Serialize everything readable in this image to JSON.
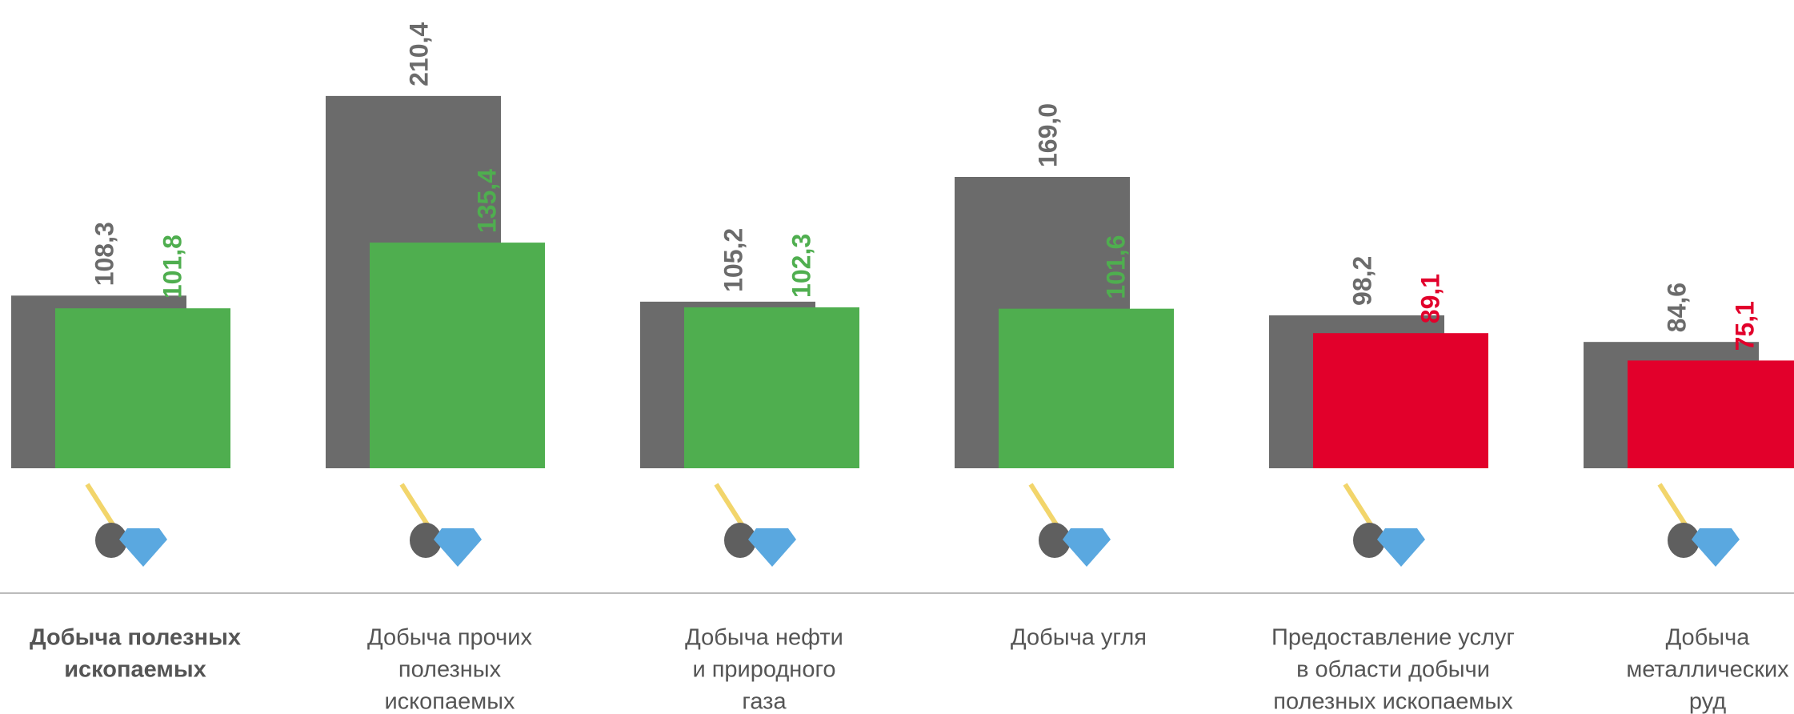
{
  "chart_data": {
    "type": "bar",
    "categories": [
      [
        "Добыча полезных",
        "ископаемых"
      ],
      [
        "Добыча прочих",
        "полезных",
        "ископаемых"
      ],
      [
        "Добыча нефти",
        "и природного",
        "газа"
      ],
      [
        "Добыча угля"
      ],
      [
        "Предоставление услуг",
        "в области добычи",
        "полезных ископаемых"
      ],
      [
        "Добыча",
        "металлических",
        "руд"
      ]
    ],
    "series": [
      {
        "color": "#6b6b6b",
        "values": [
          108.3,
          210.4,
          105.2,
          169.0,
          98.2,
          84.6
        ],
        "value_labels": [
          "108,3",
          "210,4",
          "105,2",
          "169,0",
          "98,2",
          "84,6"
        ]
      },
      {
        "colors": [
          "#4fae4f",
          "#4fae4f",
          "#4fae4f",
          "#4fae4f",
          "#e2002b",
          "#e2002b"
        ],
        "values": [
          101.8,
          135.4,
          102.3,
          101.6,
          89.1,
          75.1
        ],
        "value_labels": [
          "101,8",
          "135,4",
          "102,3",
          "101,6",
          "89,1",
          "75,1"
        ]
      }
    ],
    "ylim": [
      20,
      230
    ]
  }
}
